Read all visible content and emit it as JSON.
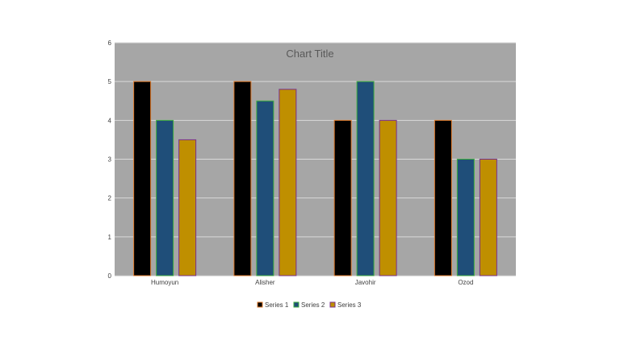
{
  "chart_data": {
    "type": "bar",
    "title": "Chart Title",
    "categories": [
      "Humoyun",
      "Alisher",
      "Javohir",
      "Ozod"
    ],
    "series": [
      {
        "name": "Series 1",
        "values": [
          5,
          5,
          4,
          4
        ],
        "fill": "#000000",
        "stroke": "#e07a2a"
      },
      {
        "name": "Series 2",
        "values": [
          4,
          4.5,
          5,
          3
        ],
        "fill": "#1f4e79",
        "stroke": "#3fae3f"
      },
      {
        "name": "Series 3",
        "values": [
          3.5,
          4.8,
          4,
          3
        ],
        "fill": "#bf8f00",
        "stroke": "#7a2f8f"
      }
    ],
    "yticks": [
      "0",
      "1",
      "2",
      "3",
      "4",
      "5",
      "6"
    ],
    "ylim": [
      0,
      6
    ],
    "grid": true,
    "legend_position": "bottom",
    "plot_background": "#a6a6a6",
    "gridline_color": "#d9d9d9"
  }
}
